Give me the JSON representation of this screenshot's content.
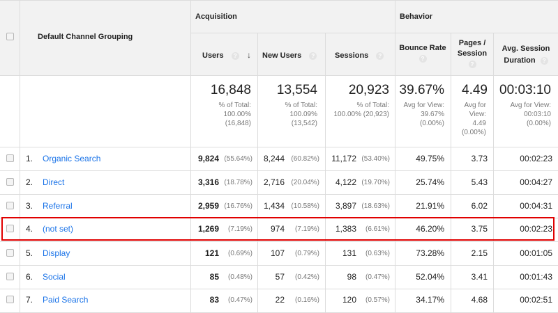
{
  "header": {
    "dimension": "Default Channel Grouping",
    "acquisition": "Acquisition",
    "behavior": "Behavior",
    "columns": {
      "users": "Users",
      "new_users": "New Users",
      "sessions": "Sessions",
      "bounce_rate": "Bounce Rate",
      "pages_session_1": "Pages /",
      "pages_session_2": "Session",
      "avg_duration_1": "Avg. Session",
      "avg_duration_2": "Duration"
    },
    "help_glyph": "?",
    "sort_glyph": "↓"
  },
  "summary": {
    "users": {
      "big": "16,848",
      "l1": "% of Total:",
      "l2": "100.00%",
      "l3": "(16,848)"
    },
    "new_users": {
      "big": "13,554",
      "l1": "% of Total:",
      "l2": "100.09%",
      "l3": "(13,542)"
    },
    "sessions": {
      "big": "20,923",
      "l1": "% of Total:",
      "l2": "100.00% (20,923)"
    },
    "bounce_rate": {
      "big": "39.67%",
      "l1": "Avg for View:",
      "l2": "39.67%",
      "l3": "(0.00%)"
    },
    "pages_session": {
      "big": "4.49",
      "l1": "Avg for",
      "l2": "View:",
      "l3": "4.49",
      "l4": "(0.00%)"
    },
    "avg_duration": {
      "big": "00:03:10",
      "l1": "Avg for View:",
      "l2": "00:03:10",
      "l3": "(0.00%)"
    }
  },
  "rows": [
    {
      "num": "1.",
      "channel": "Organic Search",
      "users": "9,824",
      "users_pct": "(55.64%)",
      "new_users": "8,244",
      "new_users_pct": "(60.82%)",
      "sessions": "11,172",
      "sessions_pct": "(53.40%)",
      "bounce": "49.75%",
      "pages": "3.73",
      "duration": "00:02:23"
    },
    {
      "num": "2.",
      "channel": "Direct",
      "users": "3,316",
      "users_pct": "(18.78%)",
      "new_users": "2,716",
      "new_users_pct": "(20.04%)",
      "sessions": "4,122",
      "sessions_pct": "(19.70%)",
      "bounce": "25.74%",
      "pages": "5.43",
      "duration": "00:04:27"
    },
    {
      "num": "3.",
      "channel": "Referral",
      "users": "2,959",
      "users_pct": "(16.76%)",
      "new_users": "1,434",
      "new_users_pct": "(10.58%)",
      "sessions": "3,897",
      "sessions_pct": "(18.63%)",
      "bounce": "21.91%",
      "pages": "6.02",
      "duration": "00:04:31"
    },
    {
      "num": "4.",
      "channel": "(not set)",
      "users": "1,269",
      "users_pct": "(7.19%)",
      "new_users": "974",
      "new_users_pct": "(7.19%)",
      "sessions": "1,383",
      "sessions_pct": "(6.61%)",
      "bounce": "46.20%",
      "pages": "3.75",
      "duration": "00:02:23"
    },
    {
      "num": "5.",
      "channel": "Display",
      "users": "121",
      "users_pct": "(0.69%)",
      "new_users": "107",
      "new_users_pct": "(0.79%)",
      "sessions": "131",
      "sessions_pct": "(0.63%)",
      "bounce": "73.28%",
      "pages": "2.15",
      "duration": "00:01:05"
    },
    {
      "num": "6.",
      "channel": "Social",
      "users": "85",
      "users_pct": "(0.48%)",
      "new_users": "57",
      "new_users_pct": "(0.42%)",
      "sessions": "98",
      "sessions_pct": "(0.47%)",
      "bounce": "52.04%",
      "pages": "3.41",
      "duration": "00:01:43"
    },
    {
      "num": "7.",
      "channel": "Paid Search",
      "users": "83",
      "users_pct": "(0.47%)",
      "new_users": "22",
      "new_users_pct": "(0.16%)",
      "sessions": "120",
      "sessions_pct": "(0.57%)",
      "bounce": "34.17%",
      "pages": "4.68",
      "duration": "00:02:51"
    }
  ],
  "colors": {
    "link": "#1a73e8",
    "highlight": "#e00000",
    "header_bg": "#f2f2f2"
  }
}
